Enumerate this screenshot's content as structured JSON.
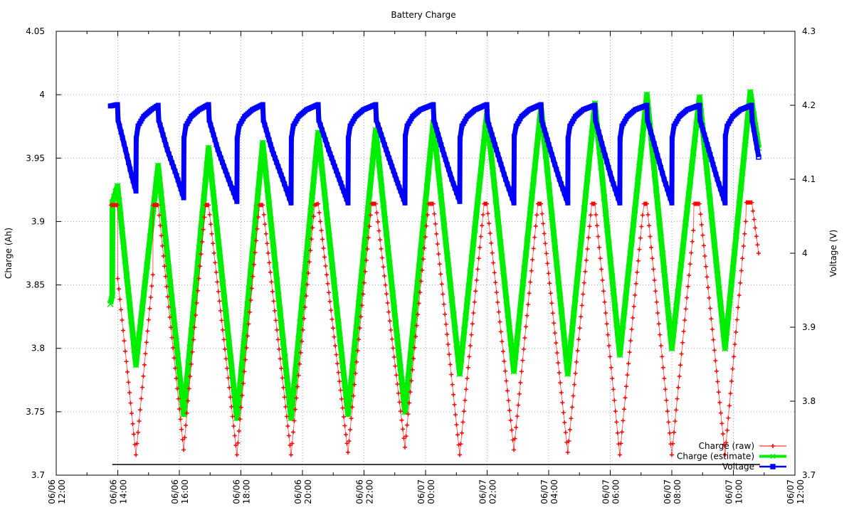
{
  "chart_data": {
    "type": "line",
    "title": "Battery Charge",
    "xlabel": "",
    "ylabel": "Charge (Ah)",
    "y2label": "Voltage (V)",
    "x_units": "hours since 06/06 00:00",
    "xlim": [
      12,
      36
    ],
    "ylim": [
      3.7,
      4.05
    ],
    "y2lim": [
      3.7,
      4.3
    ],
    "grid": true,
    "legend_position": "bottom-right",
    "x_ticks": [
      {
        "value": 12,
        "date": "06/06",
        "time": "12:00"
      },
      {
        "value": 14,
        "date": "06/06",
        "time": "14:00"
      },
      {
        "value": 16,
        "date": "06/06",
        "time": "16:00"
      },
      {
        "value": 18,
        "date": "06/06",
        "time": "18:00"
      },
      {
        "value": 20,
        "date": "06/06",
        "time": "20:00"
      },
      {
        "value": 22,
        "date": "06/06",
        "time": "22:00"
      },
      {
        "value": 24,
        "date": "06/07",
        "time": "00:00"
      },
      {
        "value": 26,
        "date": "06/07",
        "time": "02:00"
      },
      {
        "value": 28,
        "date": "06/07",
        "time": "04:00"
      },
      {
        "value": 30,
        "date": "06/07",
        "time": "06:00"
      },
      {
        "value": 32,
        "date": "06/07",
        "time": "08:00"
      },
      {
        "value": 34,
        "date": "06/07",
        "time": "10:00"
      },
      {
        "value": 36,
        "date": "06/07",
        "time": "12:00"
      }
    ],
    "y_ticks": [
      {
        "value": 3.7,
        "label": "3.7"
      },
      {
        "value": 3.75,
        "label": "3.75"
      },
      {
        "value": 3.8,
        "label": "3.8"
      },
      {
        "value": 3.85,
        "label": "3.85"
      },
      {
        "value": 3.9,
        "label": "3.9"
      },
      {
        "value": 3.95,
        "label": "3.95"
      },
      {
        "value": 4.0,
        "label": "4"
      },
      {
        "value": 4.05,
        "label": "4.05"
      }
    ],
    "y2_ticks": [
      {
        "value": 3.7,
        "label": "3.7"
      },
      {
        "value": 3.8,
        "label": "3.8"
      },
      {
        "value": 3.9,
        "label": "3.9"
      },
      {
        "value": 4.0,
        "label": "4"
      },
      {
        "value": 4.1,
        "label": "4.1"
      },
      {
        "value": 4.2,
        "label": "4.2"
      },
      {
        "value": 4.3,
        "label": "4.3"
      }
    ],
    "series": [
      {
        "name": "Charge (raw)",
        "axis": "y",
        "color": "#ff0000",
        "marker": "plus",
        "points": [
          [
            13.78,
            3.913
          ],
          [
            13.99,
            3.913
          ],
          [
            14.0,
            3.855
          ],
          [
            14.59,
            3.716
          ],
          [
            15.14,
            3.858
          ],
          [
            15.15,
            3.913
          ],
          [
            15.31,
            3.913
          ],
          [
            16.14,
            3.72
          ],
          [
            16.85,
            3.913
          ],
          [
            16.95,
            3.913
          ],
          [
            17.87,
            3.716
          ],
          [
            18.6,
            3.913
          ],
          [
            18.71,
            3.913
          ],
          [
            19.63,
            3.716
          ],
          [
            20.4,
            3.913
          ],
          [
            20.51,
            3.914
          ],
          [
            21.48,
            3.718
          ],
          [
            22.25,
            3.914
          ],
          [
            22.38,
            3.914
          ],
          [
            23.33,
            3.722
          ],
          [
            24.1,
            3.914
          ],
          [
            24.25,
            3.914
          ],
          [
            25.11,
            3.716
          ],
          [
            25.9,
            3.914
          ],
          [
            25.99,
            3.914
          ],
          [
            26.87,
            3.72
          ],
          [
            27.65,
            3.914
          ],
          [
            27.75,
            3.914
          ],
          [
            28.62,
            3.718
          ],
          [
            29.4,
            3.914
          ],
          [
            29.5,
            3.914
          ],
          [
            30.31,
            3.716
          ],
          [
            31.05,
            3.905
          ],
          [
            31.1,
            3.914
          ],
          [
            31.19,
            3.914
          ],
          [
            32.0,
            3.716
          ],
          [
            32.7,
            3.893
          ],
          [
            32.72,
            3.914
          ],
          [
            32.9,
            3.914
          ],
          [
            33.73,
            3.716
          ],
          [
            34.4,
            3.9
          ],
          [
            34.42,
            3.915
          ],
          [
            34.6,
            3.915
          ],
          [
            34.82,
            3.875
          ]
        ]
      },
      {
        "name": "Charge (estimate)",
        "axis": "y",
        "color": "#00ee00",
        "marker": "cross",
        "points": [
          [
            13.76,
            3.835
          ],
          [
            13.82,
            3.842
          ],
          [
            13.83,
            3.915
          ],
          [
            13.99,
            3.928
          ],
          [
            14.59,
            3.787
          ],
          [
            15.31,
            3.944
          ],
          [
            16.14,
            3.748
          ],
          [
            16.95,
            3.958
          ],
          [
            17.87,
            3.745
          ],
          [
            18.71,
            3.962
          ],
          [
            19.63,
            3.745
          ],
          [
            20.51,
            3.97
          ],
          [
            21.48,
            3.748
          ],
          [
            22.38,
            3.972
          ],
          [
            23.33,
            3.75
          ],
          [
            24.25,
            3.978
          ],
          [
            25.11,
            3.78
          ],
          [
            25.99,
            3.985
          ],
          [
            26.87,
            3.782
          ],
          [
            27.75,
            3.99
          ],
          [
            28.62,
            3.78
          ],
          [
            29.5,
            3.993
          ],
          [
            30.31,
            3.795
          ],
          [
            31.19,
            4.0
          ],
          [
            32.0,
            3.8
          ],
          [
            32.9,
            3.998
          ],
          [
            33.73,
            3.8
          ],
          [
            34.55,
            4.002
          ],
          [
            34.82,
            3.958
          ]
        ]
      },
      {
        "name": "Voltage",
        "axis": "y2",
        "color": "#0000ff",
        "marker": "star",
        "points": [
          [
            13.76,
            4.199
          ],
          [
            13.99,
            4.201
          ],
          [
            14.01,
            4.18
          ],
          [
            14.25,
            4.14
          ],
          [
            14.45,
            4.105
          ],
          [
            14.59,
            4.084
          ],
          [
            14.6,
            4.155
          ],
          [
            14.66,
            4.172
          ],
          [
            14.84,
            4.185
          ],
          [
            15.09,
            4.194
          ],
          [
            15.31,
            4.2
          ],
          [
            15.33,
            4.18
          ],
          [
            15.61,
            4.14
          ],
          [
            15.91,
            4.105
          ],
          [
            16.14,
            4.075
          ],
          [
            16.15,
            4.155
          ],
          [
            16.21,
            4.172
          ],
          [
            16.39,
            4.185
          ],
          [
            16.64,
            4.194
          ],
          [
            16.95,
            4.201
          ],
          [
            16.97,
            4.18
          ],
          [
            17.25,
            4.14
          ],
          [
            17.6,
            4.1
          ],
          [
            17.87,
            4.07
          ],
          [
            17.88,
            4.155
          ],
          [
            17.94,
            4.172
          ],
          [
            18.12,
            4.185
          ],
          [
            18.37,
            4.194
          ],
          [
            18.71,
            4.201
          ],
          [
            18.73,
            4.18
          ],
          [
            19.01,
            4.14
          ],
          [
            19.36,
            4.1
          ],
          [
            19.63,
            4.068
          ],
          [
            19.64,
            4.155
          ],
          [
            19.7,
            4.172
          ],
          [
            19.88,
            4.185
          ],
          [
            20.13,
            4.194
          ],
          [
            20.51,
            4.201
          ],
          [
            20.53,
            4.18
          ],
          [
            20.85,
            4.14
          ],
          [
            21.2,
            4.1
          ],
          [
            21.48,
            4.068
          ],
          [
            21.49,
            4.155
          ],
          [
            21.55,
            4.172
          ],
          [
            21.73,
            4.185
          ],
          [
            21.98,
            4.194
          ],
          [
            22.38,
            4.201
          ],
          [
            22.4,
            4.18
          ],
          [
            22.72,
            4.14
          ],
          [
            23.05,
            4.1
          ],
          [
            23.33,
            4.068
          ],
          [
            23.34,
            4.158
          ],
          [
            23.4,
            4.172
          ],
          [
            23.58,
            4.185
          ],
          [
            23.83,
            4.194
          ],
          [
            24.25,
            4.201
          ],
          [
            24.27,
            4.18
          ],
          [
            24.55,
            4.14
          ],
          [
            24.85,
            4.1
          ],
          [
            25.11,
            4.07
          ],
          [
            25.12,
            4.155
          ],
          [
            25.18,
            4.172
          ],
          [
            25.36,
            4.185
          ],
          [
            25.61,
            4.194
          ],
          [
            25.99,
            4.201
          ],
          [
            26.01,
            4.18
          ],
          [
            26.3,
            4.14
          ],
          [
            26.6,
            4.1
          ],
          [
            26.87,
            4.068
          ],
          [
            26.88,
            4.158
          ],
          [
            26.94,
            4.172
          ],
          [
            27.12,
            4.185
          ],
          [
            27.37,
            4.194
          ],
          [
            27.75,
            4.201
          ],
          [
            27.77,
            4.18
          ],
          [
            28.05,
            4.14
          ],
          [
            28.35,
            4.1
          ],
          [
            28.62,
            4.068
          ],
          [
            28.63,
            4.155
          ],
          [
            28.69,
            4.172
          ],
          [
            28.87,
            4.185
          ],
          [
            29.12,
            4.194
          ],
          [
            29.5,
            4.2
          ],
          [
            29.52,
            4.18
          ],
          [
            29.78,
            4.14
          ],
          [
            30.05,
            4.1
          ],
          [
            30.31,
            4.068
          ],
          [
            30.32,
            4.155
          ],
          [
            30.38,
            4.172
          ],
          [
            30.56,
            4.185
          ],
          [
            30.81,
            4.194
          ],
          [
            31.19,
            4.2
          ],
          [
            31.21,
            4.18
          ],
          [
            31.48,
            4.14
          ],
          [
            31.75,
            4.1
          ],
          [
            32.0,
            4.068
          ],
          [
            32.01,
            4.155
          ],
          [
            32.07,
            4.172
          ],
          [
            32.25,
            4.185
          ],
          [
            32.5,
            4.194
          ],
          [
            32.9,
            4.2
          ],
          [
            32.92,
            4.18
          ],
          [
            33.2,
            4.14
          ],
          [
            33.48,
            4.1
          ],
          [
            33.73,
            4.068
          ],
          [
            33.74,
            4.158
          ],
          [
            33.8,
            4.172
          ],
          [
            33.98,
            4.185
          ],
          [
            34.23,
            4.194
          ],
          [
            34.59,
            4.2
          ],
          [
            34.61,
            4.18
          ],
          [
            34.82,
            4.13
          ]
        ]
      }
    ],
    "baseline": {
      "axis": "y",
      "color": "#000000",
      "points": [
        [
          13.82,
          3.7084
        ],
        [
          34.87,
          3.7084
        ]
      ]
    }
  }
}
